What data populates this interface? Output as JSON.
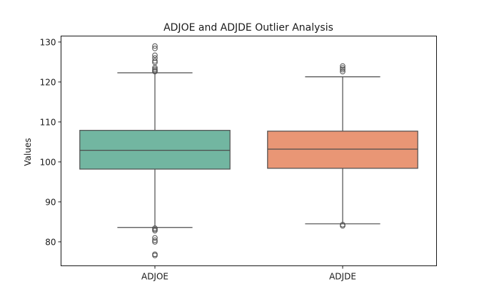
{
  "chart_data": {
    "type": "box",
    "title": "ADJOE and ADJDE Outlier Analysis",
    "xlabel": "",
    "ylabel": "Values",
    "ylim": [
      74,
      131.5
    ],
    "yticks": [
      80,
      90,
      100,
      110,
      120,
      130
    ],
    "grid": false,
    "legend": "none",
    "boxes": [
      {
        "label": "ADJOE",
        "color": "#72b6a1",
        "q1": 98.2,
        "median": 102.9,
        "q3": 107.9,
        "whisker_low": 83.6,
        "whisker_high": 122.3,
        "outliers": [
          76.6,
          76.9,
          80.0,
          80.4,
          81.0,
          82.8,
          83.1,
          83.4,
          122.6,
          122.9,
          123.2,
          123.6,
          124.9,
          125.3,
          126.0,
          126.7,
          128.4,
          129.0
        ]
      },
      {
        "label": "ADJDE",
        "color": "#e99675",
        "q1": 98.4,
        "median": 103.2,
        "q3": 107.7,
        "whisker_low": 84.5,
        "whisker_high": 121.3,
        "outliers": [
          84.0,
          84.3,
          122.6,
          123.1,
          123.5,
          124.0
        ]
      }
    ]
  }
}
